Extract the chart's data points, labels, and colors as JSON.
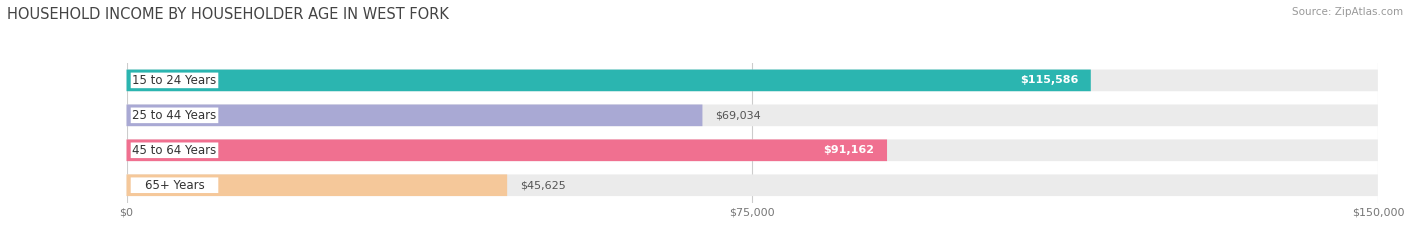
{
  "title": "HOUSEHOLD INCOME BY HOUSEHOLDER AGE IN WEST FORK",
  "source": "Source: ZipAtlas.com",
  "categories": [
    "15 to 24 Years",
    "25 to 44 Years",
    "45 to 64 Years",
    "65+ Years"
  ],
  "values": [
    115586,
    69034,
    91162,
    45625
  ],
  "labels": [
    "$115,586",
    "$69,034",
    "$91,162",
    "$45,625"
  ],
  "bar_colors": [
    "#2bb5b0",
    "#a9a9d4",
    "#f07090",
    "#f5c89a"
  ],
  "bar_bg_color": "#ebebeb",
  "xlim": [
    0,
    150000
  ],
  "xticks": [
    0,
    75000,
    150000
  ],
  "xticklabels": [
    "$0",
    "$75,000",
    "$150,000"
  ],
  "title_fontsize": 10.5,
  "source_fontsize": 7.5,
  "label_fontsize": 8,
  "tick_fontsize": 8,
  "cat_fontsize": 8.5,
  "background_color": "#ffffff",
  "bar_height": 0.62,
  "label_inside_threshold": 80000
}
